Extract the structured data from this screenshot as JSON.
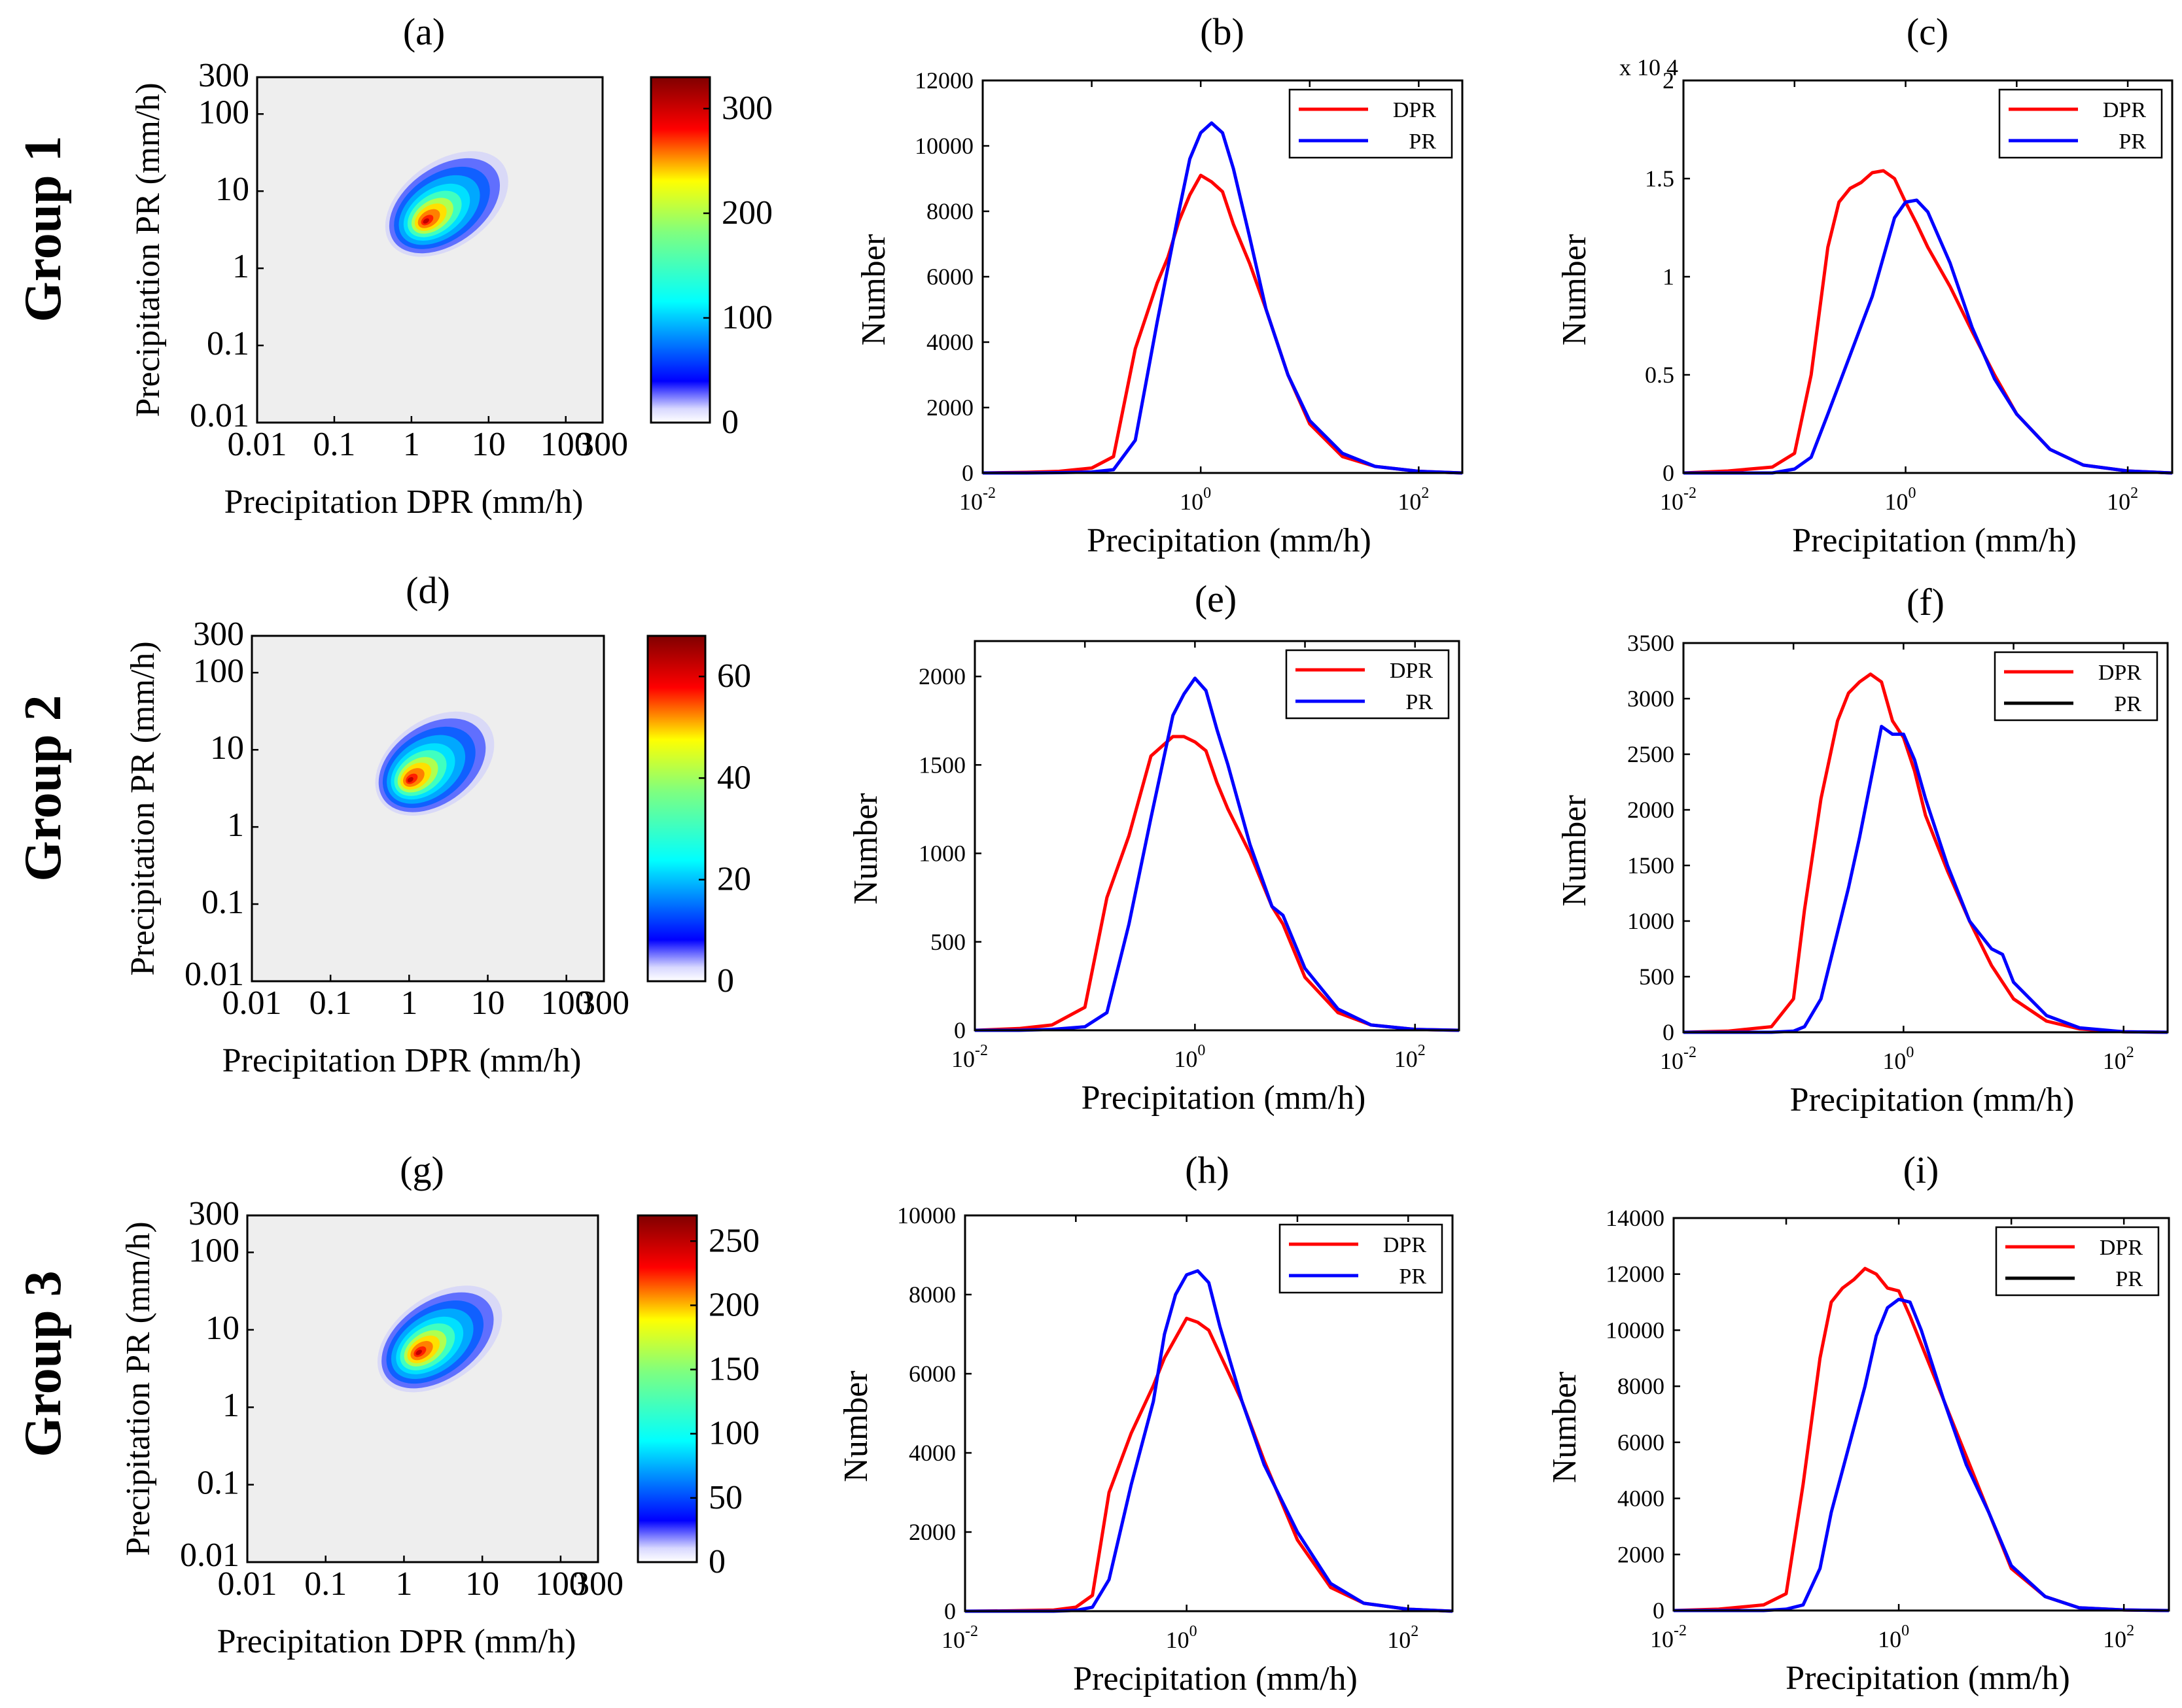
{
  "colors": {
    "dpr": "#ff0000",
    "pr": "#0000ff",
    "background_2d": "#eeeeee",
    "frame": "#000000"
  },
  "rows": [
    {
      "label": "Group 1"
    },
    {
      "label": "Group 2"
    },
    {
      "label": "Group 3"
    }
  ],
  "chart_data": [
    {
      "id": "a",
      "type": "heatmap",
      "title": "(a)",
      "xlabel": "Precipitation DPR (mm/h)",
      "ylabel": "Precipitation  PR (mm/h)",
      "xscale": "log",
      "yscale": "log",
      "xlim": [
        0.01,
        300
      ],
      "ylim": [
        0.01,
        300
      ],
      "xticks": [
        "0.01",
        "0.1",
        "1",
        "10",
        "100",
        "300"
      ],
      "yticks": [
        "0.01",
        "0.1",
        "1",
        "10",
        "100",
        "300"
      ],
      "xtick_values": [
        0.01,
        0.1,
        1,
        10,
        100,
        300
      ],
      "ytick_values": [
        0.01,
        0.1,
        1,
        10,
        100,
        300
      ],
      "colorbar": {
        "min": 0,
        "max": 330,
        "ticks": [
          "0",
          "100",
          "200",
          "300"
        ],
        "tick_values": [
          0,
          100,
          200,
          300
        ]
      },
      "density": {
        "peak_x": 1.5,
        "peak_y": 4,
        "x_min": 0.2,
        "y_min": 0.9,
        "x_max": 150,
        "y_max": 150
      }
    },
    {
      "id": "b",
      "type": "line",
      "title": "(b)",
      "xlabel": "Precipitation (mm/h)",
      "ylabel": "Number",
      "xscale": "log",
      "xlim": [
        -2,
        2.4
      ],
      "ylim": [
        0,
        12000
      ],
      "yticks": [
        "0",
        "2000",
        "4000",
        "6000",
        "8000",
        "10000",
        "12000"
      ],
      "ytick_values": [
        0,
        2000,
        4000,
        6000,
        8000,
        10000,
        12000
      ],
      "xticks": [
        {
          "base": "10",
          "exp": "-2",
          "pos": -2
        },
        {
          "base": "10",
          "exp": "0",
          "pos": 0
        },
        {
          "base": "10",
          "exp": "2",
          "pos": 2
        }
      ],
      "x": [
        -2,
        -1.6,
        -1.3,
        -1,
        -0.8,
        -0.6,
        -0.5,
        -0.4,
        -0.3,
        -0.2,
        -0.1,
        0,
        0.1,
        0.2,
        0.3,
        0.45,
        0.6,
        0.8,
        1,
        1.3,
        1.6,
        2,
        2.4
      ],
      "series": [
        {
          "name": "DPR",
          "values": [
            0,
            20,
            50,
            150,
            500,
            3800,
            4800,
            5800,
            6600,
            7700,
            8500,
            9100,
            8900,
            8600,
            7600,
            6400,
            5000,
            3000,
            1500,
            500,
            200,
            50,
            0
          ]
        },
        {
          "name": "PR",
          "values": [
            0,
            0,
            10,
            30,
            100,
            1000,
            2800,
            4600,
            6300,
            8000,
            9600,
            10400,
            10700,
            10400,
            9300,
            7200,
            5000,
            3000,
            1600,
            600,
            200,
            50,
            0
          ]
        }
      ],
      "legend": {
        "position": "top-right",
        "entries": [
          "DPR",
          "PR"
        ]
      }
    },
    {
      "id": "c",
      "type": "line",
      "title": "(c)",
      "xlabel": "Precipitation (mm/h)",
      "ylabel": "Number",
      "xscale": "log",
      "xlim": [
        -2,
        2.4
      ],
      "ylim": [
        0,
        2
      ],
      "y_multiplier": "x 10 4",
      "yticks": [
        "0",
        "0.5",
        "1",
        "1.5",
        "2"
      ],
      "ytick_values": [
        0,
        0.5,
        1,
        1.5,
        2
      ],
      "xticks": [
        {
          "base": "10",
          "exp": "-2",
          "pos": -2
        },
        {
          "base": "10",
          "exp": "0",
          "pos": 0
        },
        {
          "base": "10",
          "exp": "2",
          "pos": 2
        }
      ],
      "x": [
        -2,
        -1.6,
        -1.2,
        -1,
        -0.85,
        -0.7,
        -0.6,
        -0.5,
        -0.4,
        -0.3,
        -0.2,
        -0.1,
        0,
        0.1,
        0.2,
        0.4,
        0.6,
        0.8,
        1,
        1.3,
        1.6,
        2,
        2.4
      ],
      "series": [
        {
          "name": "DPR",
          "values": [
            0,
            0.01,
            0.03,
            0.1,
            0.5,
            1.15,
            1.38,
            1.45,
            1.48,
            1.53,
            1.54,
            1.5,
            1.38,
            1.27,
            1.15,
            0.95,
            0.72,
            0.5,
            0.3,
            0.12,
            0.04,
            0.01,
            0
          ]
        },
        {
          "name": "PR",
          "values": [
            0,
            0,
            0,
            0.02,
            0.08,
            0.3,
            0.45,
            0.6,
            0.75,
            0.9,
            1.1,
            1.3,
            1.38,
            1.39,
            1.33,
            1.07,
            0.74,
            0.48,
            0.3,
            0.12,
            0.04,
            0.01,
            0
          ]
        }
      ],
      "legend": {
        "position": "top-right",
        "entries": [
          "DPR",
          "PR"
        ]
      }
    },
    {
      "id": "d",
      "type": "heatmap",
      "title": "(d)",
      "xlabel": "Precipitation DPR (mm/h)",
      "ylabel": "Precipitation  PR (mm/h)",
      "xscale": "log",
      "yscale": "log",
      "xlim": [
        0.01,
        300
      ],
      "ylim": [
        0.01,
        300
      ],
      "xticks": [
        "0.01",
        "0.1",
        "1",
        "10",
        "100",
        "300"
      ],
      "yticks": [
        "0.01",
        "0.1",
        "1",
        "10",
        "100",
        "300"
      ],
      "xtick_values": [
        0.01,
        0.1,
        1,
        10,
        100,
        300
      ],
      "ytick_values": [
        0.01,
        0.1,
        1,
        10,
        100,
        300
      ],
      "colorbar": {
        "min": 0,
        "max": 68,
        "ticks": [
          "0",
          "20",
          "40",
          "60"
        ],
        "tick_values": [
          0,
          20,
          40,
          60
        ]
      },
      "density": {
        "peak_x": 1,
        "peak_y": 4,
        "x_min": 0.2,
        "y_min": 0.8,
        "x_max": 100,
        "y_max": 150
      }
    },
    {
      "id": "e",
      "type": "line",
      "title": "(e)",
      "xlabel": "Precipitation (mm/h)",
      "ylabel": "Number",
      "xscale": "log",
      "xlim": [
        -2,
        2.4
      ],
      "ylim": [
        0,
        2200
      ],
      "yticks": [
        "0",
        "500",
        "1000",
        "1500",
        "2000"
      ],
      "ytick_values": [
        0,
        500,
        1000,
        1500,
        2000
      ],
      "xticks": [
        {
          "base": "10",
          "exp": "-2",
          "pos": -2
        },
        {
          "base": "10",
          "exp": "0",
          "pos": 0
        },
        {
          "base": "10",
          "exp": "2",
          "pos": 2
        }
      ],
      "x": [
        -2,
        -1.6,
        -1.3,
        -1,
        -0.8,
        -0.6,
        -0.4,
        -0.2,
        -0.1,
        0,
        0.1,
        0.2,
        0.3,
        0.5,
        0.7,
        0.8,
        1,
        1.3,
        1.6,
        2,
        2.4
      ],
      "series": [
        {
          "name": "DPR",
          "values": [
            0,
            10,
            30,
            130,
            750,
            1100,
            1550,
            1660,
            1660,
            1630,
            1580,
            1400,
            1250,
            1000,
            700,
            600,
            300,
            100,
            30,
            5,
            0
          ]
        },
        {
          "name": "PR",
          "values": [
            0,
            0,
            5,
            20,
            100,
            600,
            1200,
            1780,
            1900,
            1990,
            1920,
            1700,
            1500,
            1050,
            700,
            650,
            350,
            120,
            30,
            5,
            0
          ]
        }
      ],
      "legend": {
        "position": "top-right",
        "entries": [
          "DPR",
          "PR"
        ]
      }
    },
    {
      "id": "f",
      "type": "line",
      "title": "(f)",
      "xlabel": "Precipitation (mm/h)",
      "ylabel": "Number",
      "xscale": "log",
      "xlim": [
        -2,
        2.4
      ],
      "ylim": [
        0,
        3500
      ],
      "yticks": [
        "0",
        "500",
        "1000",
        "1500",
        "2000",
        "2500",
        "3000",
        "3500"
      ],
      "ytick_values": [
        0,
        500,
        1000,
        1500,
        2000,
        2500,
        3000,
        3500
      ],
      "xticks": [
        {
          "base": "10",
          "exp": "-2",
          "pos": -2
        },
        {
          "base": "10",
          "exp": "0",
          "pos": 0
        },
        {
          "base": "10",
          "exp": "2",
          "pos": 2
        }
      ],
      "x": [
        -2,
        -1.6,
        -1.2,
        -1,
        -0.9,
        -0.75,
        -0.6,
        -0.5,
        -0.4,
        -0.3,
        -0.2,
        -0.1,
        0,
        0.1,
        0.2,
        0.4,
        0.6,
        0.8,
        0.9,
        1,
        1.3,
        1.6,
        2,
        2.4
      ],
      "series": [
        {
          "name": "DPR",
          "values": [
            0,
            10,
            50,
            300,
            1100,
            2100,
            2800,
            3050,
            3150,
            3220,
            3150,
            2800,
            2650,
            2350,
            1950,
            1450,
            1000,
            600,
            450,
            300,
            100,
            30,
            5,
            0
          ]
        },
        {
          "name": "PR",
          "values": [
            0,
            0,
            0,
            10,
            50,
            300,
            900,
            1300,
            1750,
            2250,
            2750,
            2680,
            2680,
            2450,
            2100,
            1500,
            1000,
            750,
            700,
            450,
            150,
            40,
            5,
            0
          ]
        }
      ],
      "legend": {
        "position": "top-right",
        "entries": [
          "DPR",
          "PR"
        ],
        "swatches": [
          "#ff0000",
          "#000000"
        ]
      }
    },
    {
      "id": "g",
      "type": "heatmap",
      "title": "(g)",
      "xlabel": "Precipitation DPR (mm/h)",
      "ylabel": "Precipitation  PR (mm/h)",
      "xscale": "log",
      "yscale": "log",
      "xlim": [
        0.01,
        300
      ],
      "ylim": [
        0.01,
        300
      ],
      "xticks": [
        "0.01",
        "0.1",
        "1",
        "10",
        "100",
        "300"
      ],
      "yticks": [
        "0.01",
        "0.1",
        "1",
        "10",
        "100",
        "300"
      ],
      "xtick_values": [
        0.01,
        0.1,
        1,
        10,
        100,
        300
      ],
      "ytick_values": [
        0.01,
        0.1,
        1,
        10,
        100,
        300
      ],
      "colorbar": {
        "min": 0,
        "max": 270,
        "ticks": [
          "0",
          "50",
          "100",
          "150",
          "200",
          "250"
        ],
        "tick_values": [
          0,
          50,
          100,
          150,
          200,
          250
        ]
      },
      "density": {
        "peak_x": 1.5,
        "peak_y": 5,
        "x_min": 0.2,
        "y_min": 0.9,
        "x_max": 150,
        "y_max": 150
      }
    },
    {
      "id": "h",
      "type": "line",
      "title": "(h)",
      "xlabel": "Precipitation (mm/h)",
      "ylabel": "Number",
      "xscale": "log",
      "xlim": [
        -2,
        2.4
      ],
      "ylim": [
        0,
        10000
      ],
      "yticks": [
        "0",
        "2000",
        "4000",
        "6000",
        "8000",
        "10000"
      ],
      "ytick_values": [
        0,
        2000,
        4000,
        6000,
        8000,
        10000
      ],
      "xticks": [
        {
          "base": "10",
          "exp": "-2",
          "pos": -2
        },
        {
          "base": "10",
          "exp": "0",
          "pos": 0
        },
        {
          "base": "10",
          "exp": "2",
          "pos": 2
        }
      ],
      "x": [
        -2,
        -1.6,
        -1.2,
        -1,
        -0.85,
        -0.7,
        -0.5,
        -0.3,
        -0.2,
        -0.1,
        0,
        0.1,
        0.2,
        0.3,
        0.5,
        0.7,
        1,
        1.3,
        1.6,
        2,
        2.4
      ],
      "series": [
        {
          "name": "DPR",
          "values": [
            0,
            10,
            30,
            100,
            400,
            3000,
            4500,
            5700,
            6400,
            6900,
            7400,
            7300,
            7100,
            6500,
            5300,
            3800,
            1800,
            600,
            200,
            50,
            0
          ]
        },
        {
          "name": "PR",
          "values": [
            0,
            0,
            0,
            20,
            100,
            800,
            3200,
            5300,
            7000,
            8000,
            8500,
            8600,
            8300,
            7200,
            5300,
            3700,
            2000,
            700,
            200,
            50,
            0
          ]
        }
      ],
      "legend": {
        "position": "top-right",
        "entries": [
          "DPR",
          "PR"
        ]
      }
    },
    {
      "id": "i",
      "type": "line",
      "title": "(i)",
      "xlabel": "Precipitation (mm/h)",
      "ylabel": "Number",
      "xscale": "log",
      "xlim": [
        -2,
        2.4
      ],
      "ylim": [
        0,
        14000
      ],
      "yticks": [
        "0",
        "2000",
        "4000",
        "6000",
        "8000",
        "10000",
        "12000",
        "14000"
      ],
      "ytick_values": [
        0,
        2000,
        4000,
        6000,
        8000,
        10000,
        12000,
        14000
      ],
      "xticks": [
        {
          "base": "10",
          "exp": "-2",
          "pos": -2
        },
        {
          "base": "10",
          "exp": "0",
          "pos": 0
        },
        {
          "base": "10",
          "exp": "2",
          "pos": 2
        }
      ],
      "x": [
        -2,
        -1.6,
        -1.2,
        -1,
        -0.85,
        -0.7,
        -0.6,
        -0.5,
        -0.4,
        -0.3,
        -0.2,
        -0.1,
        0,
        0.1,
        0.2,
        0.4,
        0.6,
        0.8,
        1,
        1.3,
        1.6,
        2,
        2.4
      ],
      "series": [
        {
          "name": "DPR",
          "values": [
            0,
            50,
            200,
            600,
            4500,
            9000,
            11000,
            11500,
            11800,
            12200,
            12000,
            11500,
            11400,
            10500,
            9500,
            7500,
            5500,
            3500,
            1500,
            500,
            100,
            20,
            0
          ]
        },
        {
          "name": "PR",
          "values": [
            0,
            0,
            0,
            50,
            200,
            1500,
            3500,
            5000,
            6500,
            8000,
            9800,
            10800,
            11100,
            11000,
            10000,
            7500,
            5200,
            3500,
            1600,
            500,
            100,
            20,
            0
          ]
        }
      ],
      "legend": {
        "position": "top-right",
        "entries": [
          "DPR",
          "PR"
        ],
        "swatches": [
          "#ff0000",
          "#000000"
        ]
      }
    }
  ]
}
